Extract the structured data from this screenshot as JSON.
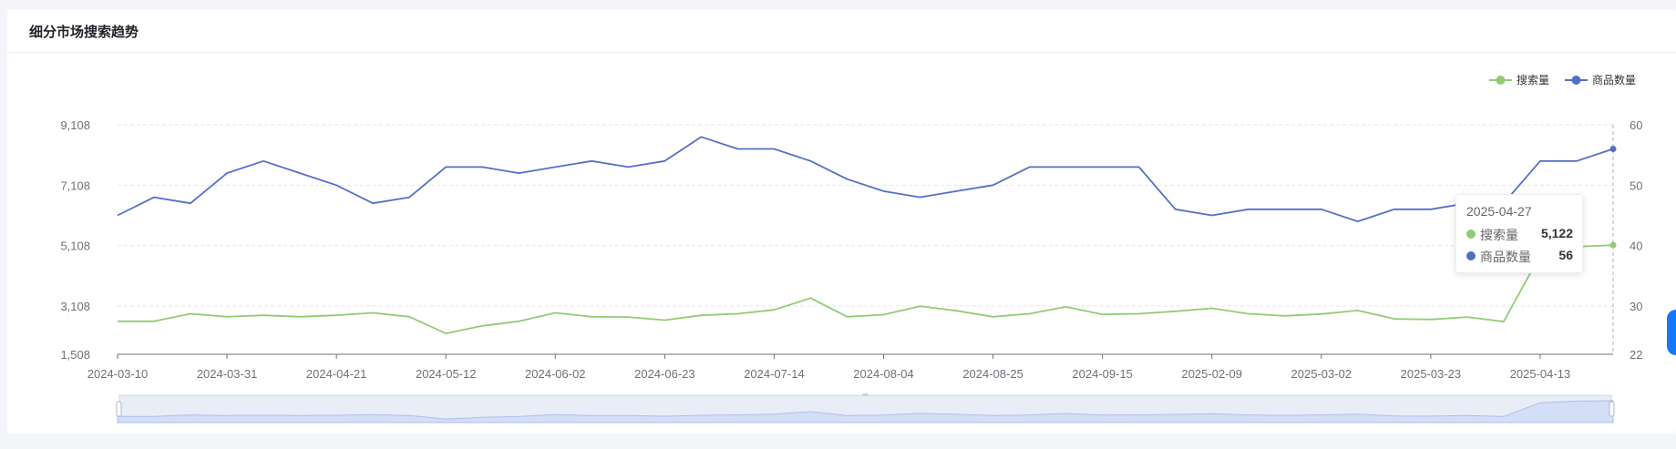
{
  "card": {
    "title": "细分市场搜索趋势"
  },
  "tooltip": {
    "date": "2025-04-27",
    "rows": [
      {
        "name": "搜索量",
        "value": "5,122"
      },
      {
        "name": "商品数量",
        "value": "56"
      }
    ]
  },
  "colors": {
    "search": "#91cc75",
    "product": "#5470c6",
    "grid": "#e6e6e6",
    "axis": "#6e7079"
  },
  "chart_data": {
    "type": "line",
    "title": "细分市场搜索趋势",
    "x": [
      "2024-03-10",
      "2024-03-17",
      "2024-03-24",
      "2024-03-31",
      "2024-04-07",
      "2024-04-14",
      "2024-04-21",
      "2024-04-28",
      "2024-05-05",
      "2024-05-12",
      "2024-05-19",
      "2024-05-26",
      "2024-06-02",
      "2024-06-09",
      "2024-06-16",
      "2024-06-23",
      "2024-06-30",
      "2024-07-07",
      "2024-07-14",
      "2024-07-21",
      "2024-07-28",
      "2024-08-04",
      "2024-08-11",
      "2024-08-18",
      "2024-08-25",
      "2024-09-01",
      "2024-09-08",
      "2024-09-15",
      "2024-09-22",
      "2024-09-29",
      "2025-02-09",
      "2025-02-16",
      "2025-02-23",
      "2025-03-02",
      "2025-03-09",
      "2025-03-16",
      "2025-03-23",
      "2025-03-30",
      "2025-04-06",
      "2025-04-13",
      "2025-04-20",
      "2025-04-27"
    ],
    "x_tick_labels": [
      "2024-03-10",
      "2024-03-31",
      "2024-04-21",
      "2024-05-12",
      "2024-06-02",
      "2024-06-23",
      "2024-07-14",
      "2024-08-04",
      "2024-08-25",
      "2024-09-15",
      "2025-02-09",
      "2025-03-02",
      "2025-03-23",
      "2025-04-13"
    ],
    "series": [
      {
        "name": "搜索量",
        "axis": "left",
        "values": [
          2600,
          2600,
          2850,
          2750,
          2800,
          2750,
          2800,
          2880,
          2750,
          2200,
          2450,
          2600,
          2880,
          2750,
          2740,
          2640,
          2800,
          2850,
          2980,
          3370,
          2750,
          2820,
          3100,
          2950,
          2750,
          2850,
          3080,
          2830,
          2850,
          2930,
          3030,
          2850,
          2780,
          2840,
          2960,
          2680,
          2660,
          2740,
          2590,
          4790,
          5070,
          5122
        ]
      },
      {
        "name": "商品数量",
        "axis": "right",
        "values": [
          45,
          48,
          47,
          52,
          54,
          52,
          50,
          47,
          48,
          53,
          53,
          52,
          53,
          54,
          53,
          54,
          58,
          56,
          56,
          54,
          51,
          49,
          48,
          49,
          50,
          53,
          53,
          53,
          53,
          46,
          45,
          46,
          46,
          46,
          44,
          46,
          46,
          47,
          47,
          54,
          54,
          56
        ]
      }
    ],
    "y_left": {
      "ticks": [
        "1,508",
        "3,108",
        "5,108",
        "7,108",
        "9,108"
      ],
      "ylim": [
        1508,
        9108
      ]
    },
    "y_right": {
      "ticks": [
        "22",
        "30",
        "40",
        "50",
        "60"
      ],
      "ylim": [
        22,
        60
      ]
    },
    "legend": {
      "position": "top-right",
      "items": [
        "搜索量",
        "商品数量"
      ]
    },
    "grid": true
  }
}
